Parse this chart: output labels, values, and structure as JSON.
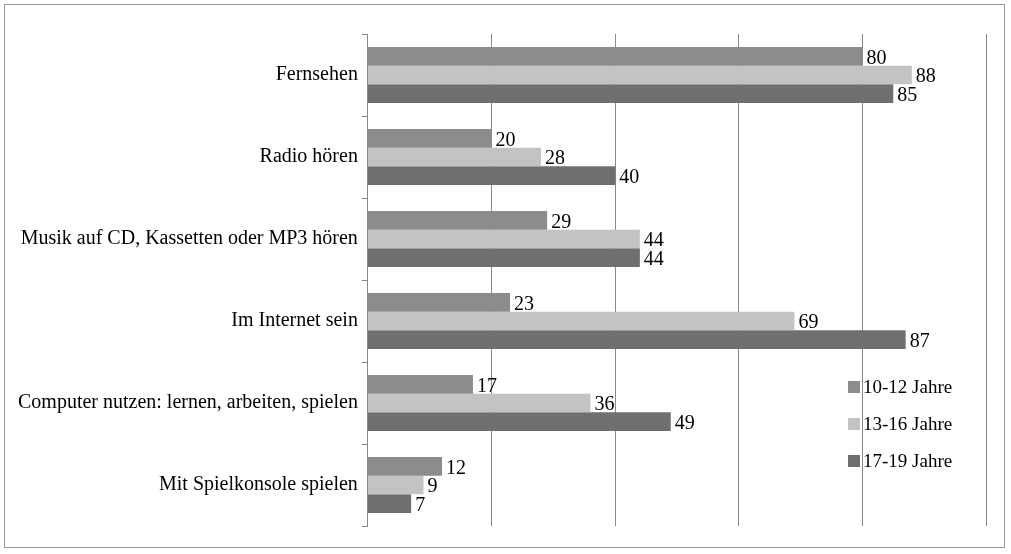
{
  "chart_data": {
    "type": "bar",
    "orientation": "horizontal",
    "categories": [
      "Fernsehen",
      "Radio hören",
      "Musik auf CD, Kassetten oder MP3 hören",
      "Im Internet sein",
      "Computer nutzen: lernen, arbeiten, spielen",
      "Mit Spielkonsole spielen"
    ],
    "series": [
      {
        "name": "10-12 Jahre",
        "color": "#8c8c8c",
        "values": [
          80,
          20,
          29,
          23,
          17,
          12
        ]
      },
      {
        "name": "13-16 Jahre",
        "color": "#c3c3c3",
        "values": [
          88,
          28,
          44,
          69,
          36,
          9
        ]
      },
      {
        "name": "17-19 Jahre",
        "color": "#6f6f6f",
        "values": [
          85,
          40,
          44,
          87,
          49,
          7
        ]
      }
    ],
    "xlim": [
      0,
      100
    ],
    "xticks": [
      {
        "value": 0,
        "label": null
      },
      {
        "value": 20,
        "label": null
      },
      {
        "value": 40,
        "label": null
      },
      {
        "value": 60,
        "label": null
      },
      {
        "value": 80,
        "label": null
      },
      {
        "value": 100,
        "label": null
      }
    ],
    "tick_labels": "y",
    "grid": "x",
    "legend": "right",
    "data_labels": true
  }
}
